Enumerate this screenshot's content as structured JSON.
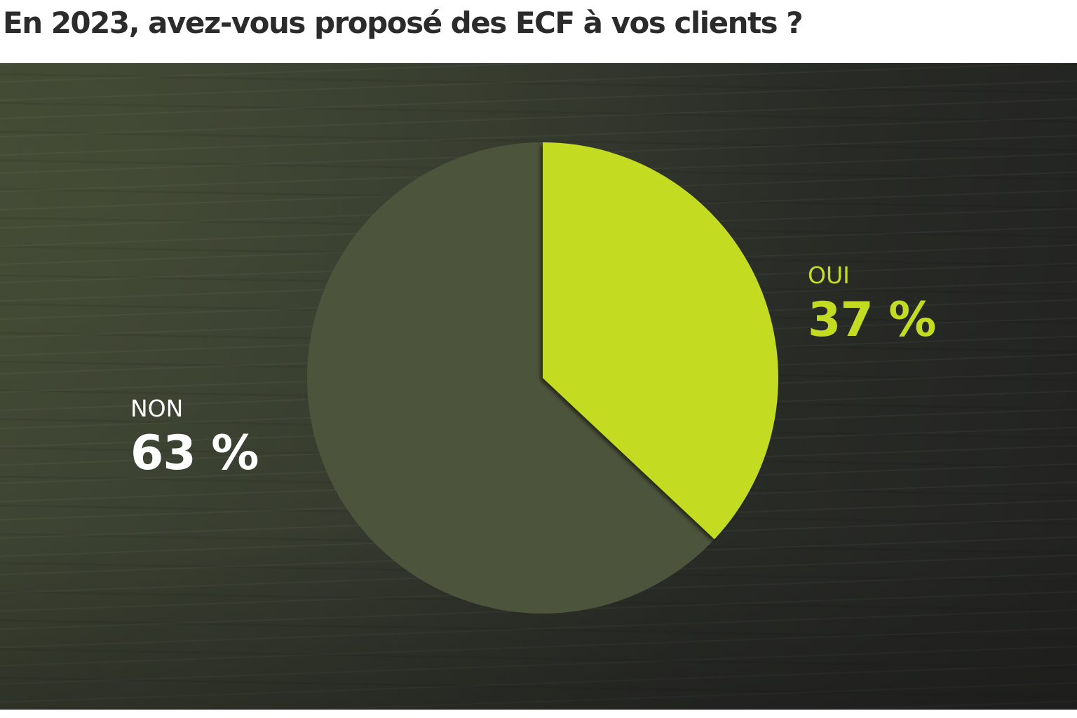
{
  "page": {
    "title": "En 2023, avez-vous proposé des ECF à vos clients ?"
  },
  "chart_data": {
    "type": "pie",
    "title": "En 2023, avez-vous proposé des ECF à vos clients ?",
    "slices": [
      {
        "label": "OUI",
        "value": 37,
        "display": "37 %",
        "color": "#c3dc22"
      },
      {
        "label": "NON",
        "value": 63,
        "display": "63 %",
        "color": "#4d543c"
      }
    ],
    "start": "12 o'clock, clockwise"
  }
}
